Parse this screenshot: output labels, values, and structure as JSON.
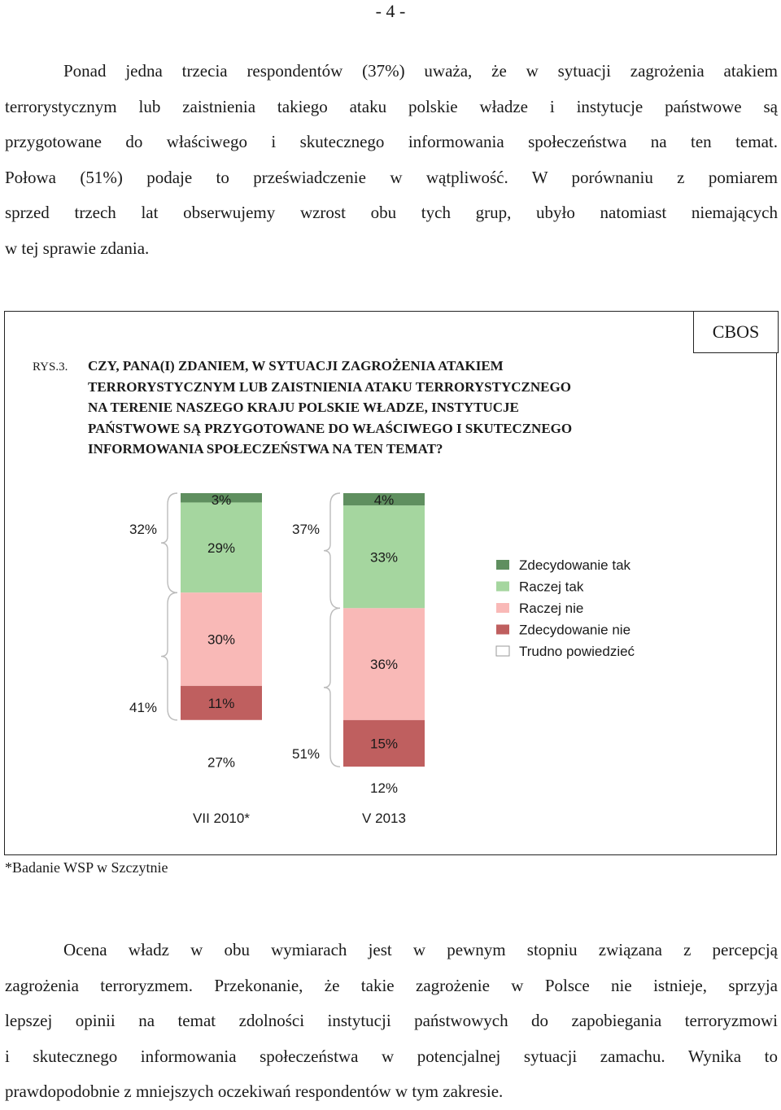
{
  "page_number": "- 4 -",
  "paragraph_1": [
    "Ponad jedna trzecia respondentów (37%) uważa, że w sytuacji zagrożenia atakiem",
    "terrorystycznym lub zaistnienia takiego ataku polskie władze i instytucje państwowe są",
    "przygotowane do właściwego i skutecznego informowania społeczeństwa na ten temat.",
    "Połowa (51%) podaje to przeświadczenie w wątpliwość. W porównaniu z pomiarem",
    "sprzed trzech lat obserwujemy wzrost obu tych grup, ubyło natomiast niemających",
    "w tej sprawie zdania."
  ],
  "figure": {
    "label": "RYS.3.",
    "title_lines": [
      "CZY, PANA(I) ZDANIEM, W SYTUACJI ZAGROŻENIA ATAKIEM",
      "TERRORYSTYCZNYM LUB ZAISTNIENIA ATAKU TERRORYSTYCZNEGO",
      "NA TERENIE NASZEGO KRAJU POLSKIE WŁADZE, INSTYTUCJE",
      "PAŃSTWOWE SĄ PRZYGOTOWANE DO WŁAŚCIWEGO I SKUTECZNEGO",
      "INFORMOWANIA SPOŁECZEŃSTWA NA TEN TEMAT?"
    ],
    "source": "CBOS"
  },
  "chart_data": {
    "type": "bar",
    "stacked": true,
    "orientation": "vertical",
    "categories": [
      "VII 2010*",
      "V 2013"
    ],
    "series": [
      {
        "name": "Zdecydowanie tak",
        "values": [
          3,
          4
        ],
        "color": "#5f8f5f"
      },
      {
        "name": "Raczej tak",
        "values": [
          29,
          33
        ],
        "color": "#a5d69f"
      },
      {
        "name": "Raczej nie",
        "values": [
          30,
          36
        ],
        "color": "#f9b9b7"
      },
      {
        "name": "Zdecydowanie nie",
        "values": [
          11,
          15
        ],
        "color": "#bf5f5f"
      },
      {
        "name": "Trudno powiedzieć",
        "values": [
          27,
          12
        ],
        "color": "#ffffff"
      }
    ],
    "group_totals": [
      {
        "category": "VII 2010*",
        "yes_total": "32%",
        "no_total": "41%"
      },
      {
        "category": "V 2013",
        "yes_total": "37%",
        "no_total": "51%"
      }
    ],
    "legend_position": "right",
    "grid": false
  },
  "footnote": "*Badanie WSP w Szczytnie",
  "paragraph_2": [
    "Ocena władz w obu wymiarach jest w pewnym stopniu związana z percepcją",
    "zagrożenia terroryzmem. Przekonanie, że takie zagrożenie w Polsce nie istnieje, sprzyja",
    "lepszej opinii na temat zdolności instytucji państwowych  do zapobiegania terroryzmowi",
    "i skutecznego informowania społeczeństwa w potencjalnej sytuacji zamachu. Wynika to",
    "prawdopodobnie z  mniejszych oczekiwań respondentów w tym zakresie."
  ]
}
